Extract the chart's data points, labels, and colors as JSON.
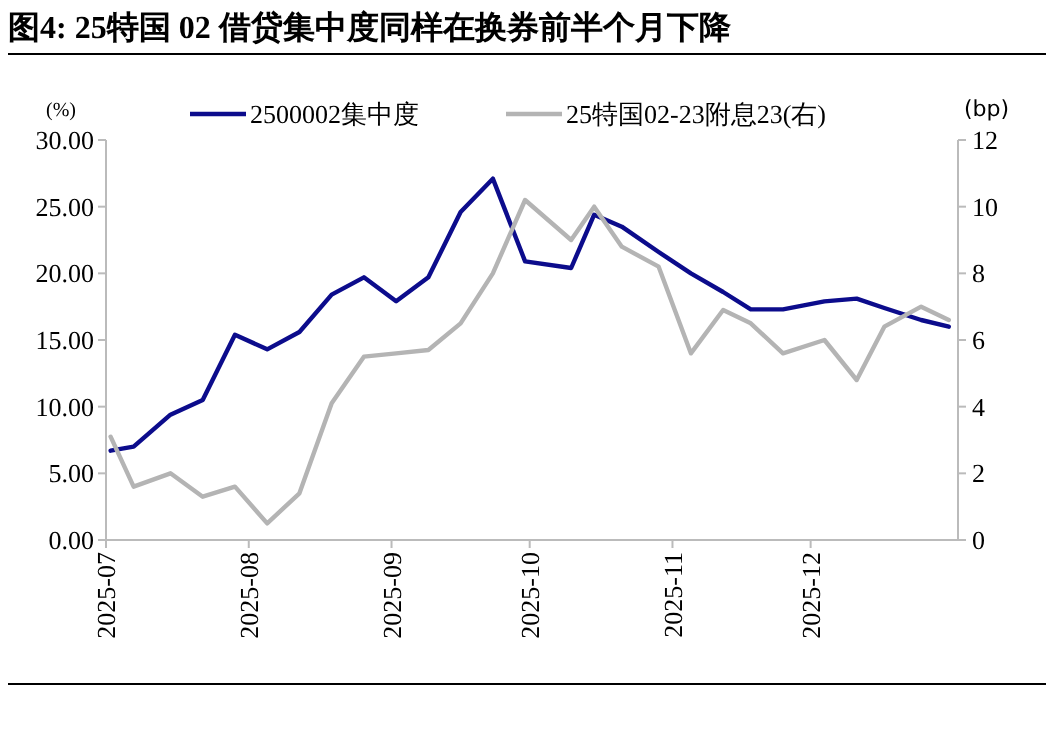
{
  "chart_data": {
    "type": "line",
    "title": "图4:  25特国 02 借贷集中度同样在换券前半个月下降",
    "ylabel": "(%)",
    "y2label": "(bp)",
    "x": [
      "2025-07-02",
      "2025-07-07",
      "2025-07-15",
      "2025-07-22",
      "2025-07-29",
      "2025-08-05",
      "2025-08-12",
      "2025-08-19",
      "2025-08-26",
      "2025-09-02",
      "2025-09-09",
      "2025-09-16",
      "2025-09-23",
      "2025-09-30",
      "2025-10-10",
      "2025-10-15",
      "2025-10-21",
      "2025-10-29",
      "2025-11-05",
      "2025-11-12",
      "2025-11-18",
      "2025-11-25",
      "2025-12-04",
      "2025-12-11",
      "2025-12-17",
      "2025-12-25",
      "2025-12-31"
    ],
    "series": [
      {
        "name": "2500002集中度",
        "color": "#0c0c8c",
        "values": [
          6.7,
          7.0,
          9.4,
          10.5,
          15.4,
          14.3,
          15.6,
          18.4,
          19.7,
          17.9,
          19.7,
          24.6,
          27.1,
          20.9,
          20.4,
          24.4,
          23.5,
          21.6,
          20.0,
          18.6,
          17.3,
          17.3,
          17.9,
          18.1,
          17.4,
          16.5,
          16.0
        ]
      },
      {
        "name": "25特国02-23附息23(右)",
        "color": "#b4b4b4",
        "axis": "y2",
        "values": [
          3.1,
          1.6,
          2.0,
          1.3,
          1.6,
          0.5,
          1.4,
          4.1,
          5.5,
          5.6,
          5.7,
          6.5,
          8.0,
          10.2,
          9.0,
          10.0,
          8.8,
          8.2,
          5.6,
          6.9,
          6.5,
          5.6,
          6.0,
          4.8,
          6.4,
          7.0,
          6.6
        ]
      }
    ],
    "xlim": [
      "2025-07-01",
      "2026-01-02"
    ],
    "xticks": [
      "2025-07",
      "2025-08",
      "2025-09",
      "2025-10",
      "2025-11",
      "2025-12"
    ],
    "ylim": [
      0,
      30
    ],
    "yticks": [
      {
        "value": 0,
        "label": "0.00"
      },
      {
        "value": 5,
        "label": "5.00"
      },
      {
        "value": 10,
        "label": "10.00"
      },
      {
        "value": 15,
        "label": "15.00"
      },
      {
        "value": 20,
        "label": "20.00"
      },
      {
        "value": 25,
        "label": "25.00"
      },
      {
        "value": 30,
        "label": "30.00"
      }
    ],
    "y2lim": [
      0,
      12
    ],
    "y2ticks": [
      0,
      2,
      4,
      6,
      8,
      10,
      12
    ],
    "grid": false,
    "legend": "top",
    "line_style": "solid"
  }
}
